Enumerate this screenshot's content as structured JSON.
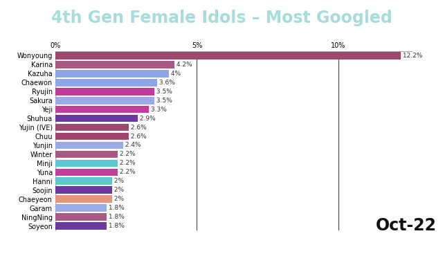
{
  "chart_data": {
    "type": "bar",
    "orientation": "horizontal",
    "title": "4th Gen Female Idols – Most Googled",
    "annotation": "Oct-22",
    "categories": [
      "Wonyoung",
      "Karina",
      "Kazuha",
      "Chaewon",
      "Ryujin",
      "Sakura",
      "Yeji",
      "Shuhua",
      "Yujin (IVE)",
      "Chuu",
      "Yunjin",
      "Winter",
      "Minji",
      "Yuna",
      "Hanni",
      "Soojin",
      "Chaeyeon",
      "Garam",
      "NingNing",
      "Soyeon"
    ],
    "values": [
      12.2,
      4.2,
      4,
      3.6,
      3.5,
      3.5,
      3.3,
      2.9,
      2.6,
      2.6,
      2.4,
      2.2,
      2.2,
      2.2,
      2,
      2,
      2,
      1.8,
      1.8,
      1.8
    ],
    "value_labels": [
      "12.2%",
      "4.2%",
      "4%",
      "3.6%",
      "3.5%",
      "3.5%",
      "3.3%",
      "2.9%",
      "2.6%",
      "2.6%",
      "2.4%",
      "2.2%",
      "2.2%",
      "2.2%",
      "2%",
      "2%",
      "2%",
      "1.8%",
      "1.8%",
      "1.8%"
    ],
    "colors": [
      "#9b4a6e",
      "#a65a84",
      "#8fa6e6",
      "#8fa6e6",
      "#c03a9a",
      "#9aaae8",
      "#c43d9c",
      "#6a3aa0",
      "#9b4a6e",
      "#a0456e",
      "#9aaae8",
      "#a65a84",
      "#5bc7cf",
      "#c43d9c",
      "#5bc7cf",
      "#6a3aa0",
      "#e8947a",
      "#9aaae8",
      "#a65a84",
      "#6a3aa0"
    ],
    "xlim": [
      0,
      12.6
    ],
    "xticks": [
      {
        "value": 0,
        "label": "0%"
      },
      {
        "value": 5,
        "label": "5%"
      },
      {
        "value": 10,
        "label": "10%"
      }
    ],
    "grid": true,
    "data_labels": true
  }
}
